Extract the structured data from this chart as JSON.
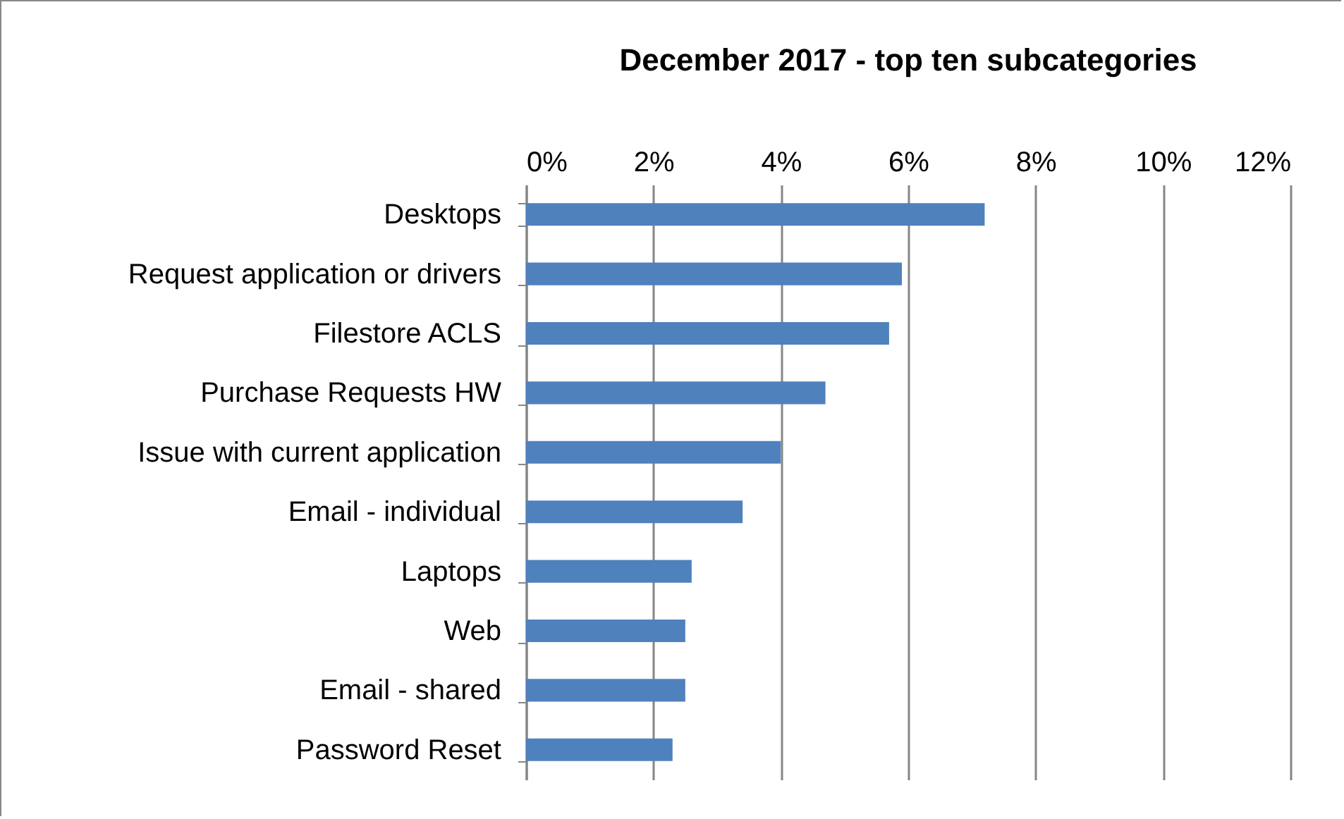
{
  "chart_data": {
    "type": "bar",
    "orientation": "horizontal",
    "title": "December 2017 - top ten subcategories",
    "categories": [
      "Desktops",
      "Request application or drivers",
      "Filestore ACLS",
      "Purchase Requests HW",
      "Issue with current application",
      "Email - individual",
      "Laptops",
      "Web",
      "Email - shared",
      "Password Reset"
    ],
    "values": [
      7.2,
      5.9,
      5.7,
      4.7,
      4.0,
      3.4,
      2.6,
      2.5,
      2.5,
      2.3
    ],
    "color": "#4f81bd",
    "xlim": [
      0,
      12
    ],
    "xticks": [
      {
        "value": 0,
        "label": "0%"
      },
      {
        "value": 2,
        "label": "2%"
      },
      {
        "value": 4,
        "label": "4%"
      },
      {
        "value": 6,
        "label": "6%"
      },
      {
        "value": 8,
        "label": "8%"
      },
      {
        "value": 10,
        "label": "10%"
      },
      {
        "value": 12,
        "label": "12%"
      }
    ],
    "grid": "x"
  }
}
